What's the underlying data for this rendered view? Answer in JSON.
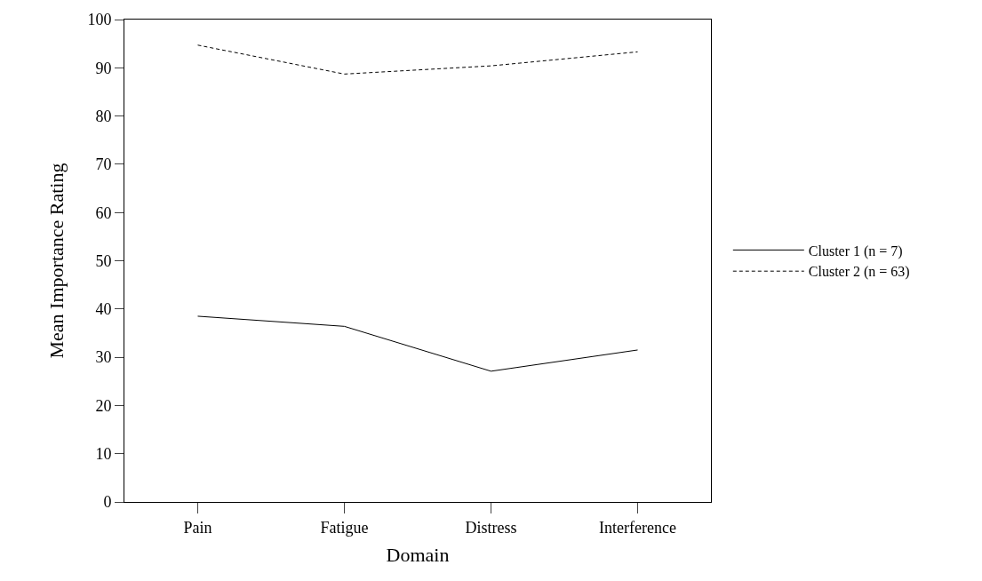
{
  "chart_data": {
    "type": "line",
    "xlabel": "Domain",
    "ylabel": "Mean Importance Rating",
    "categories": [
      "Pain",
      "Fatigue",
      "Distress",
      "Interference"
    ],
    "series": [
      {
        "name": "Cluster 1 (n = 7)",
        "color": "#000000",
        "values": [
          38.5,
          36.4,
          27.1,
          31.5
        ],
        "line_style": "solid"
      },
      {
        "name": "Cluster 2 (n = 63)",
        "color": "#000000",
        "values": [
          94.7,
          88.7,
          90.4,
          93.3
        ],
        "line_style": "dashed"
      }
    ],
    "ylim": [
      0,
      100
    ],
    "yticks": [
      0,
      10,
      20,
      30,
      40,
      50,
      60,
      70,
      80,
      90,
      100
    ],
    "legend": "right",
    "marker": "none"
  }
}
